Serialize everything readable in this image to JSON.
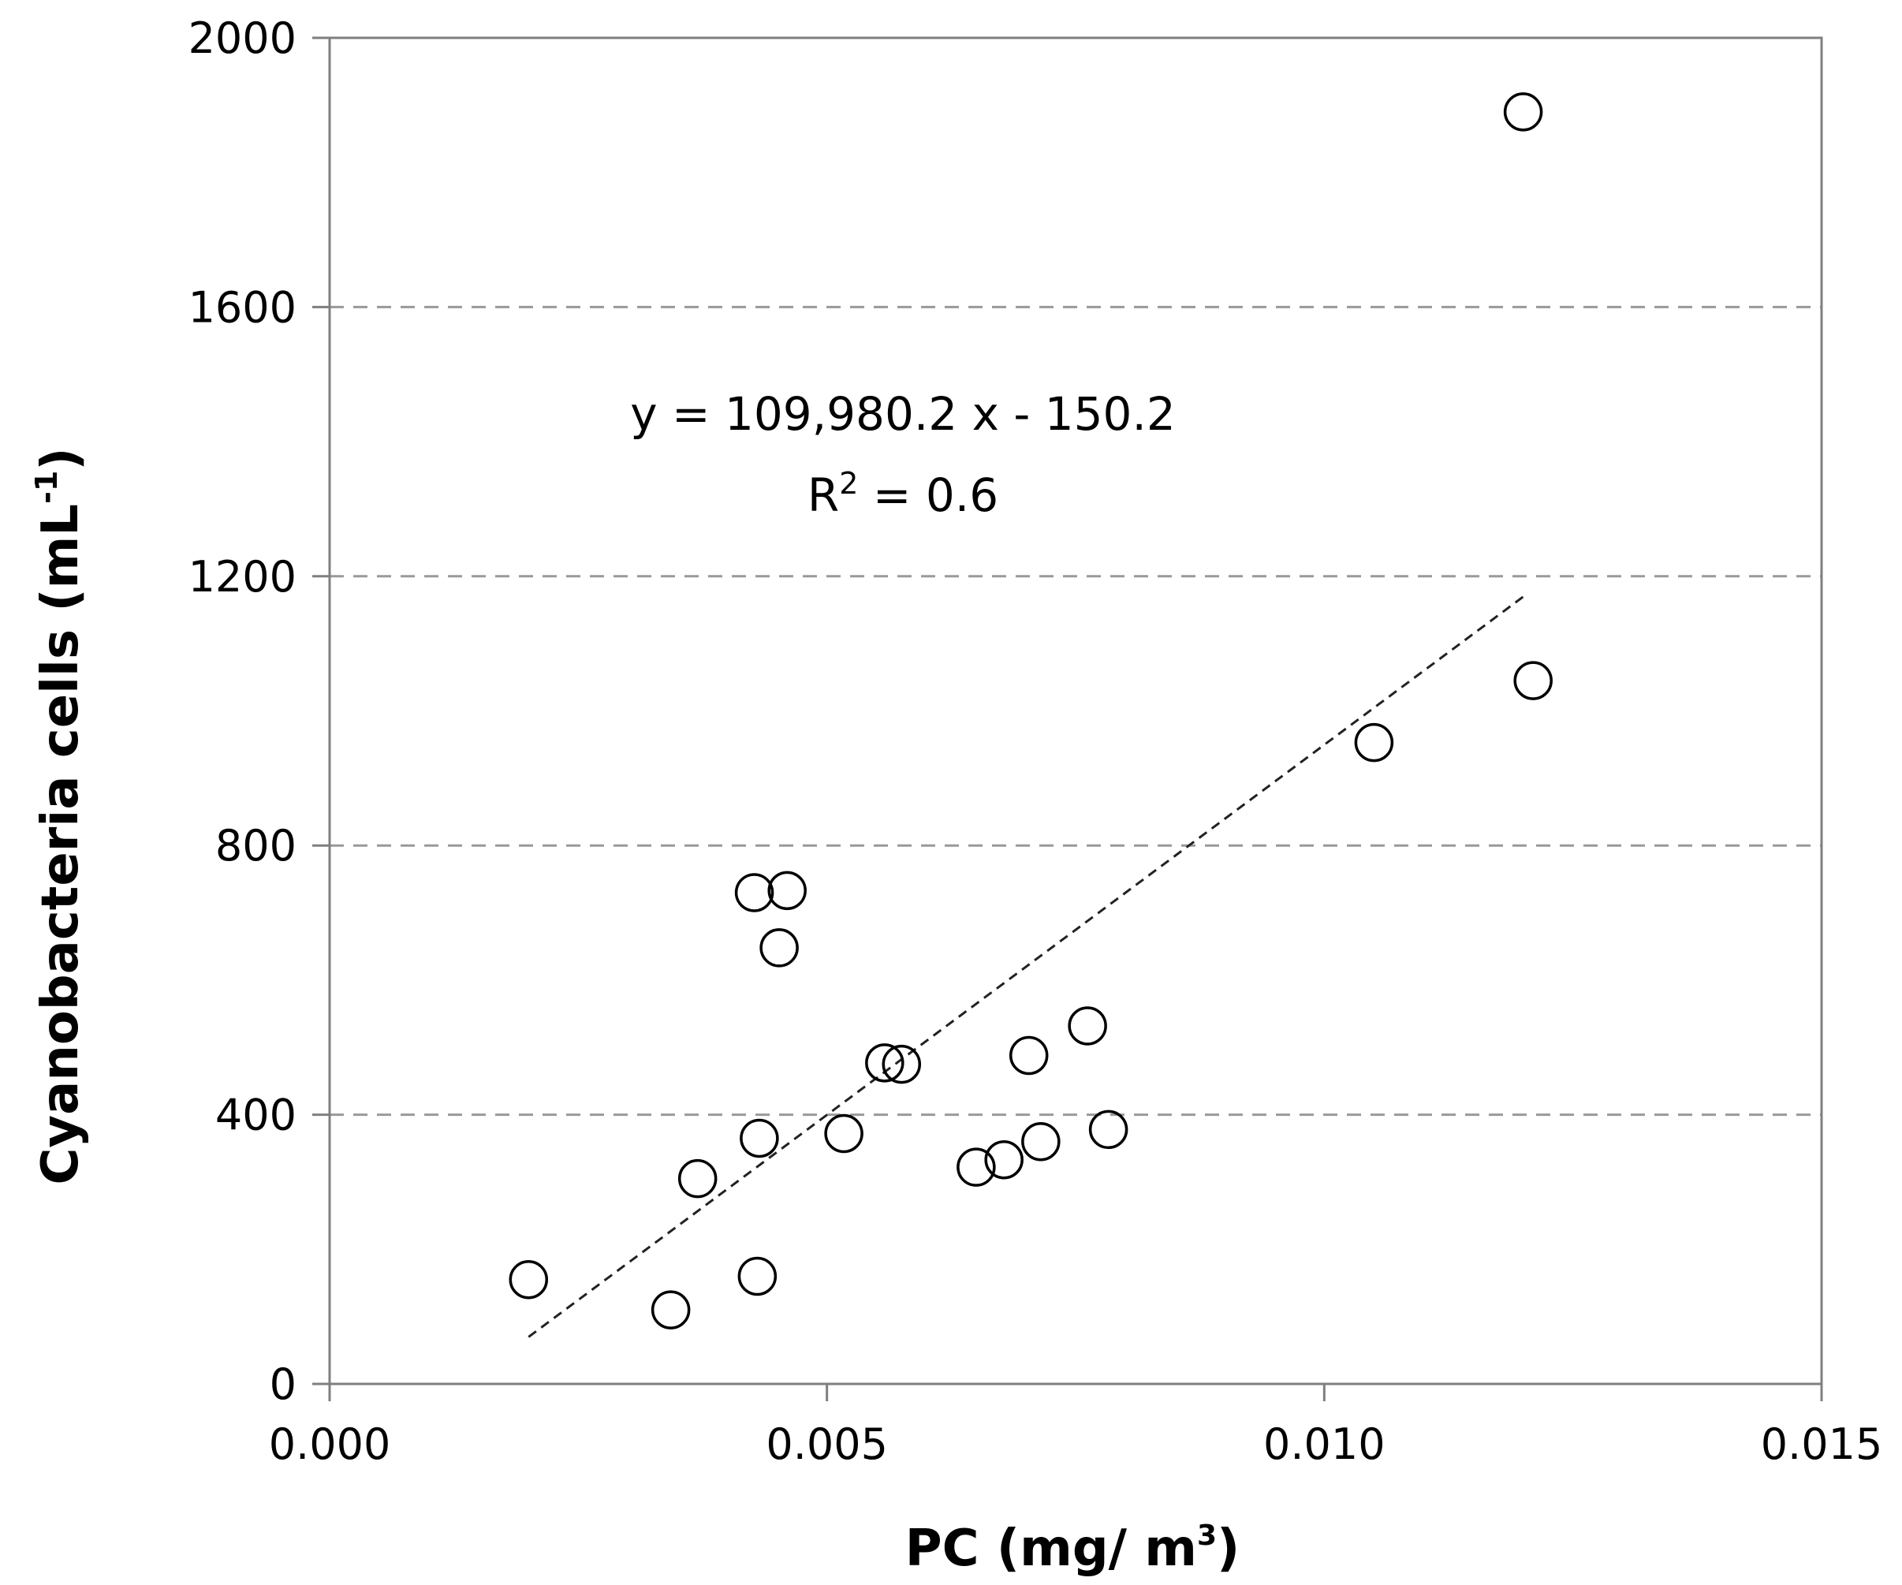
{
  "chart_data": {
    "type": "scatter",
    "title": "",
    "xlabel_main": "PC (mg/ m",
    "xlabel_sup": "3",
    "xlabel_end": ")",
    "ylabel_main": "Cyanobacteria  cells (mL",
    "ylabel_sup": "-1",
    "ylabel_end": ")",
    "xlim": [
      0.0,
      0.015
    ],
    "ylim": [
      0,
      2000
    ],
    "x_ticks": [
      0.0,
      0.005,
      0.01,
      0.015
    ],
    "x_tick_labels": [
      "0.000",
      "0.005",
      "0.010",
      "0.015"
    ],
    "y_ticks": [
      0,
      400,
      800,
      1200,
      1600,
      2000
    ],
    "y_tick_labels": [
      "0",
      "400",
      "800",
      "1200",
      "1600",
      "2000"
    ],
    "gridlines": "horizontal dashed",
    "points": [
      {
        "x": 0.002,
        "y": 155
      },
      {
        "x": 0.00343,
        "y": 110
      },
      {
        "x": 0.0037,
        "y": 305
      },
      {
        "x": 0.00427,
        "y": 730
      },
      {
        "x": 0.0043,
        "y": 160
      },
      {
        "x": 0.00432,
        "y": 365
      },
      {
        "x": 0.00452,
        "y": 648
      },
      {
        "x": 0.0046,
        "y": 733
      },
      {
        "x": 0.00517,
        "y": 372
      },
      {
        "x": 0.00558,
        "y": 477
      },
      {
        "x": 0.00575,
        "y": 475
      },
      {
        "x": 0.0065,
        "y": 322
      },
      {
        "x": 0.00678,
        "y": 333
      },
      {
        "x": 0.00703,
        "y": 488
      },
      {
        "x": 0.00715,
        "y": 360
      },
      {
        "x": 0.00762,
        "y": 532
      },
      {
        "x": 0.00783,
        "y": 378
      },
      {
        "x": 0.0105,
        "y": 953
      },
      {
        "x": 0.012,
        "y": 1890
      },
      {
        "x": 0.0121,
        "y": 1045
      }
    ],
    "trendline": {
      "type": "linear",
      "slope": 109980.2,
      "intercept": -150.2,
      "x_start": 0.002,
      "x_end": 0.012
    },
    "annotations": {
      "equation": "y = 109,980.2  x - 150.2",
      "r2_prefix": "R",
      "r2_sup": "2",
      "r2_value": " = 0.6"
    }
  }
}
